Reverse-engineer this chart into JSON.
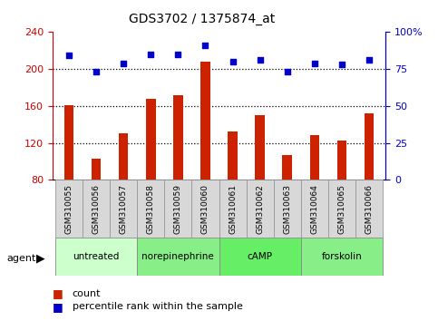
{
  "title": "GDS3702 / 1375874_at",
  "samples": [
    "GSM310055",
    "GSM310056",
    "GSM310057",
    "GSM310058",
    "GSM310059",
    "GSM310060",
    "GSM310061",
    "GSM310062",
    "GSM310063",
    "GSM310064",
    "GSM310065",
    "GSM310066"
  ],
  "counts": [
    161,
    103,
    130,
    168,
    172,
    208,
    132,
    150,
    107,
    128,
    122,
    152
  ],
  "percentile": [
    84,
    73,
    79,
    85,
    85,
    91,
    80,
    81,
    73,
    79,
    78,
    81
  ],
  "agents": [
    {
      "label": "untreated",
      "start": 0,
      "end": 3,
      "color": "#ccffcc"
    },
    {
      "label": "norepinephrine",
      "start": 3,
      "end": 6,
      "color": "#88ee88"
    },
    {
      "label": "cAMP",
      "start": 6,
      "end": 9,
      "color": "#66ee66"
    },
    {
      "label": "forskolin",
      "start": 9,
      "end": 12,
      "color": "#88ee88"
    }
  ],
  "ylim_left": [
    80,
    240
  ],
  "yticks_left": [
    80,
    120,
    160,
    200,
    240
  ],
  "ylim_right": [
    0,
    100
  ],
  "yticks_right": [
    0,
    25,
    50,
    75,
    100
  ],
  "bar_color": "#cc2200",
  "dot_color": "#0000cc",
  "bar_width": 0.35,
  "ylabel_left_color": "#cc0000",
  "ylabel_right_color": "#0000cc"
}
